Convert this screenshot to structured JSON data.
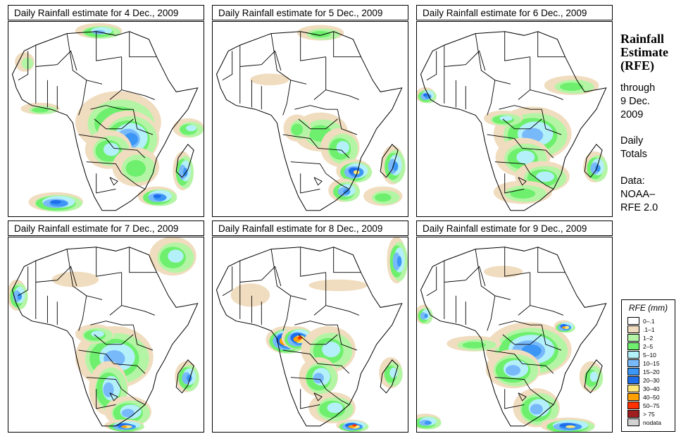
{
  "side_panel": {
    "title_lines": [
      "Rainfall",
      "Estimate",
      "(RFE)"
    ],
    "through_label": "through",
    "through_date_lines": [
      "9 Dec.",
      "2009"
    ],
    "period_lines": [
      "Daily",
      "Totals"
    ],
    "source_lines": [
      "Data:",
      "NOAA–",
      "RFE 2.0"
    ]
  },
  "legend": {
    "title": "RFE (mm)",
    "items": [
      {
        "label": "0–.1",
        "color": "#ffffff"
      },
      {
        "label": ".1–1",
        "color": "#f0dcbe"
      },
      {
        "label": "1–2",
        "color": "#b4f5a5"
      },
      {
        "label": "2–5",
        "color": "#6ef06e"
      },
      {
        "label": "5–10",
        "color": "#b4f0fa"
      },
      {
        "label": "10–15",
        "color": "#78b9fa"
      },
      {
        "label": "15–20",
        "color": "#3c96f5"
      },
      {
        "label": "20–30",
        "color": "#1e6eeb"
      },
      {
        "label": "30–40",
        "color": "#ffe678"
      },
      {
        "label": "40–50",
        "color": "#ffa000"
      },
      {
        "label": "50–75",
        "color": "#ff3200"
      },
      {
        "label": "> 75",
        "color": "#a01e1e"
      },
      {
        "label": "nodata",
        "color": "#d2d2d2"
      }
    ]
  },
  "panels": [
    {
      "title": "Daily Rainfall estimate for  4 Dec., 2009",
      "date": "4 Dec., 2009",
      "rain": [
        [
          0.57,
          0.52,
          0.22,
          0.16,
          4
        ],
        [
          0.62,
          0.6,
          0.16,
          0.14,
          6
        ],
        [
          0.52,
          0.66,
          0.12,
          0.1,
          4
        ],
        [
          0.66,
          0.75,
          0.12,
          0.1,
          3
        ],
        [
          0.77,
          0.9,
          0.1,
          0.05,
          7
        ],
        [
          0.25,
          0.93,
          0.14,
          0.05,
          7
        ],
        [
          0.9,
          0.77,
          0.05,
          0.1,
          6
        ],
        [
          0.47,
          0.05,
          0.12,
          0.04,
          5
        ],
        [
          0.17,
          0.45,
          0.1,
          0.03,
          3
        ],
        [
          0.09,
          0.21,
          0.05,
          0.05,
          2
        ],
        [
          0.93,
          0.55,
          0.08,
          0.05,
          4
        ]
      ]
    },
    {
      "title": "Daily Rainfall estimate for  5 Dec., 2009",
      "date": "5 Dec., 2009",
      "rain": [
        [
          0.56,
          0.57,
          0.14,
          0.1,
          3
        ],
        [
          0.66,
          0.65,
          0.1,
          0.1,
          4
        ],
        [
          0.73,
          0.77,
          0.09,
          0.06,
          8
        ],
        [
          0.68,
          0.87,
          0.08,
          0.06,
          6
        ],
        [
          0.93,
          0.74,
          0.06,
          0.1,
          6
        ],
        [
          0.88,
          0.9,
          0.1,
          0.05,
          3
        ],
        [
          0.44,
          0.55,
          0.07,
          0.07,
          3
        ],
        [
          0.3,
          0.3,
          0.1,
          0.03,
          1
        ],
        [
          0.56,
          0.06,
          0.12,
          0.04,
          3
        ]
      ]
    },
    {
      "title": "Daily Rainfall estimate for  6 Dec., 2009",
      "date": "6 Dec., 2009",
      "rain": [
        [
          0.6,
          0.58,
          0.2,
          0.14,
          5
        ],
        [
          0.55,
          0.7,
          0.14,
          0.1,
          4
        ],
        [
          0.65,
          0.8,
          0.14,
          0.08,
          4
        ],
        [
          0.92,
          0.75,
          0.06,
          0.08,
          6
        ],
        [
          0.8,
          0.33,
          0.14,
          0.05,
          3
        ],
        [
          0.05,
          0.38,
          0.05,
          0.04,
          7
        ],
        [
          0.45,
          0.5,
          0.1,
          0.04,
          4
        ],
        [
          0.55,
          0.88,
          0.15,
          0.06,
          3
        ]
      ]
    },
    {
      "title": "Daily Rainfall estimate for  7 Dec., 2009",
      "date": "7 Dec., 2009",
      "rain": [
        [
          0.55,
          0.62,
          0.2,
          0.16,
          5
        ],
        [
          0.52,
          0.78,
          0.1,
          0.14,
          5
        ],
        [
          0.62,
          0.9,
          0.12,
          0.08,
          5
        ],
        [
          0.6,
          0.97,
          0.1,
          0.03,
          9
        ],
        [
          0.92,
          0.72,
          0.06,
          0.08,
          6
        ],
        [
          0.85,
          0.1,
          0.12,
          0.1,
          4
        ],
        [
          0.05,
          0.3,
          0.05,
          0.08,
          6
        ],
        [
          0.45,
          0.5,
          0.1,
          0.05,
          4
        ],
        [
          0.35,
          0.22,
          0.12,
          0.04,
          1
        ]
      ]
    },
    {
      "title": "Daily Rainfall estimate for  8 Dec., 2009",
      "date": "8 Dec., 2009",
      "rain": [
        [
          0.38,
          0.53,
          0.1,
          0.07,
          11
        ],
        [
          0.44,
          0.52,
          0.08,
          0.06,
          10
        ],
        [
          0.6,
          0.58,
          0.14,
          0.12,
          4
        ],
        [
          0.55,
          0.72,
          0.1,
          0.1,
          5
        ],
        [
          0.62,
          0.88,
          0.12,
          0.08,
          4
        ],
        [
          0.72,
          0.97,
          0.08,
          0.03,
          10
        ],
        [
          0.92,
          0.7,
          0.06,
          0.08,
          4
        ],
        [
          0.95,
          0.12,
          0.05,
          0.12,
          6
        ],
        [
          0.2,
          0.3,
          0.1,
          0.06,
          1
        ],
        [
          0.65,
          0.25,
          0.15,
          0.03,
          1
        ]
      ]
    },
    {
      "title": "Daily Rainfall estimate for  9 Dec., 2009",
      "date": "9 Dec., 2009",
      "rain": [
        [
          0.58,
          0.58,
          0.22,
          0.14,
          6
        ],
        [
          0.5,
          0.68,
          0.14,
          0.1,
          5
        ],
        [
          0.62,
          0.88,
          0.12,
          0.1,
          5
        ],
        [
          0.78,
          0.97,
          0.14,
          0.04,
          8
        ],
        [
          0.05,
          0.95,
          0.08,
          0.04,
          6
        ],
        [
          0.9,
          0.72,
          0.06,
          0.08,
          4
        ],
        [
          0.04,
          0.4,
          0.04,
          0.05,
          6
        ],
        [
          0.76,
          0.46,
          0.05,
          0.03,
          9
        ],
        [
          0.3,
          0.55,
          0.14,
          0.04,
          3
        ],
        [
          0.45,
          0.18,
          0.1,
          0.03,
          1
        ]
      ]
    }
  ]
}
